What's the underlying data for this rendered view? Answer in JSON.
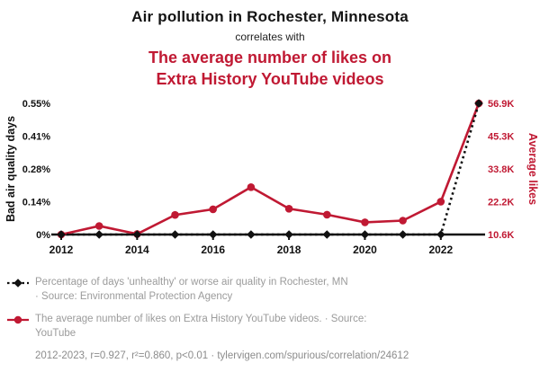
{
  "header": {
    "title": "Air pollution in Rochester, Minnesota",
    "connector": "correlates with",
    "subtitle_line1": "The average number of likes on",
    "subtitle_line2": "Extra History YouTube videos"
  },
  "colors": {
    "accent_red": "#c01933",
    "series_black": "#111111"
  },
  "chart_data": {
    "type": "line",
    "x": [
      2012,
      2013,
      2014,
      2015,
      2016,
      2017,
      2018,
      2019,
      2020,
      2021,
      2022,
      2023
    ],
    "x_ticks": [
      2012,
      2014,
      2016,
      2018,
      2020,
      2022
    ],
    "left_axis": {
      "label": "Bad air quality days",
      "min": 0,
      "max": 0.55,
      "ticks": [
        "0%",
        "0.14%",
        "0.28%",
        "0.41%",
        "0.55%"
      ]
    },
    "right_axis": {
      "label": "Average likes",
      "min": 10.6,
      "max": 56.9,
      "ticks": [
        "10.6K",
        "22.2K",
        "33.8K",
        "45.3K",
        "56.9K"
      ]
    },
    "series": [
      {
        "name": "Percentage of days 'unhealthy' or worse air quality in Rochester, MN",
        "axis": "left",
        "color": "#111111",
        "marker": "diamond",
        "line_style": "dotted",
        "unit": "% of days",
        "values": [
          0,
          0,
          0,
          0,
          0,
          0,
          0,
          0,
          0,
          0,
          0,
          0.55
        ]
      },
      {
        "name": "The average number of likes on Extra History YouTube videos",
        "axis": "right",
        "color": "#c01933",
        "marker": "circle",
        "line_style": "solid",
        "unit": "likes (thousands)",
        "values": [
          10.6,
          13.6,
          10.8,
          17.5,
          19.5,
          27.3,
          19.7,
          17.6,
          14.9,
          15.5,
          22.2,
          56.9
        ]
      }
    ]
  },
  "legend": [
    {
      "line1": "Percentage of days 'unhealthy' or worse air quality in Rochester, MN",
      "line2": "· Source: Environmental Protection Agency"
    },
    {
      "line1": "The average number of likes on Extra History YouTube videos. · Source:",
      "line2": "YouTube"
    }
  ],
  "footer": "2012-2023, r=0.927, r²=0.860, p<0.01 · tylervigen.com/spurious/correlation/24612"
}
